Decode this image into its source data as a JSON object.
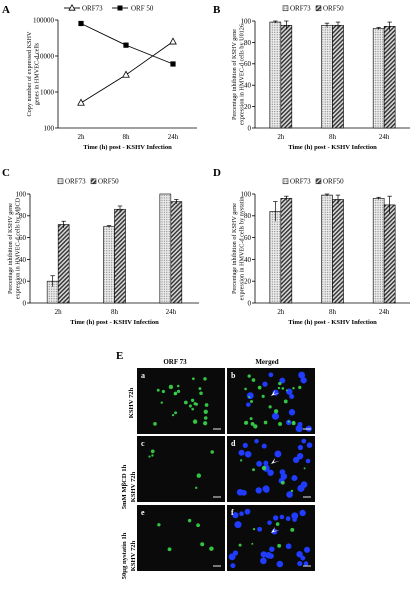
{
  "chart_data": [
    {
      "panel": "A",
      "type": "line",
      "x": [
        "2h",
        "8h",
        "24h"
      ],
      "series": [
        {
          "name": "ORF73",
          "values": [
            500,
            3000,
            25000
          ],
          "marker": "open-triangle"
        },
        {
          "name": "ORF 50",
          "values": [
            80000,
            20000,
            6000
          ],
          "marker": "filled-square"
        }
      ],
      "ylabel": "Copy number of expressed KSHV genes in HMVEC-d cells",
      "xlabel": "Time (h) post - KSHV Infection",
      "yscale": "log",
      "ylim": [
        100,
        100000
      ],
      "yticks": [
        "100",
        "1000",
        "10000",
        "100000"
      ],
      "legend": "top"
    },
    {
      "panel": "B",
      "type": "bar",
      "categories": [
        "2h",
        "8h",
        "24h"
      ],
      "series": [
        {
          "name": "ORF73",
          "values": [
            99,
            96,
            93
          ],
          "errors": [
            1,
            2,
            1
          ]
        },
        {
          "name": "ORF50",
          "values": [
            96,
            96,
            95
          ],
          "errors": [
            4,
            3,
            4
          ]
        }
      ],
      "ylabel": "Percentage inhibition of KSHV gene expression in HMVEC-d cells by U0126",
      "xlabel": "Time (h) post - KSHV Infection",
      "ylim": [
        0,
        100
      ],
      "yticks": [
        "0",
        "20",
        "40",
        "60",
        "80",
        "100"
      ],
      "legend": "top"
    },
    {
      "panel": "C",
      "type": "bar",
      "categories": [
        "2h",
        "8h",
        "24h"
      ],
      "series": [
        {
          "name": "ORF73",
          "values": [
            20,
            70,
            100
          ],
          "errors": [
            5,
            1,
            0
          ]
        },
        {
          "name": "ORF50",
          "values": [
            72,
            86,
            93
          ],
          "errors": [
            3,
            3,
            2
          ]
        }
      ],
      "ylabel": "Percentage inhibition of KSHV gene expression in HMVEC-d cells by MβCD",
      "xlabel": "Time (h) post - KSHV Infection",
      "ylim": [
        0,
        100
      ],
      "yticks": [
        "0",
        "20",
        "40",
        "60",
        "80",
        "100"
      ],
      "legend": "top"
    },
    {
      "panel": "D",
      "type": "bar",
      "categories": [
        "2h",
        "8h",
        "24h"
      ],
      "series": [
        {
          "name": "ORF73",
          "values": [
            84,
            99,
            96
          ],
          "errors": [
            9,
            1,
            1
          ]
        },
        {
          "name": "ORF50",
          "values": [
            96,
            95,
            90
          ],
          "errors": [
            2,
            4,
            8
          ]
        }
      ],
      "ylabel": "Percentage inhibition of KSHV gene expression in HMVEC-d cells by nystatin",
      "xlabel": "Time (h) post - KSHV Infection",
      "ylim": [
        0,
        100
      ],
      "yticks": [
        "0",
        "20",
        "40",
        "60",
        "80",
        "100"
      ],
      "legend": "top"
    }
  ],
  "micrographs": {
    "panel": "E",
    "columns": [
      "ORF 73",
      "Merged"
    ],
    "rows": [
      "KSHV 72h",
      "5mM MβCD 1h KSHV 72h",
      "50µg nystatin 1h KSHV 72h"
    ],
    "subpanels": [
      "a",
      "b",
      "c",
      "d",
      "e",
      "f"
    ],
    "colors": {
      "background": "#0a0a0a",
      "orf73": "#39d84a",
      "dapi": "#1f3cff"
    }
  }
}
